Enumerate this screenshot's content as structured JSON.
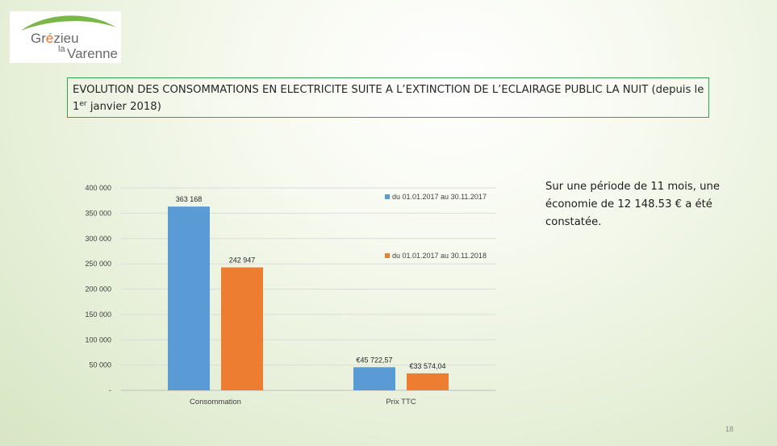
{
  "logo": {
    "name_part1": "Gr",
    "name_accent": "é",
    "name_part2": "zieu",
    "name_small": "la",
    "name_part3": "Varenne"
  },
  "slide": {
    "title_main": "EVOLUTION DES CONSOMMATIONS EN ELECTRICITE SUITE A L’EXTINCTION DE L’ECLAIRAGE PUBLIC LA NUIT (depuis le 1",
    "title_sup": "er",
    "title_end": " janvier 2018)",
    "note": "Sur une période de 11 mois, une économie de 12 148.53 € a été constatée.",
    "page_number": "18"
  },
  "colors": {
    "series1": "#5b9bd5",
    "series2": "#ed7d31",
    "title_border": "#36a34b",
    "logo_arc_green": "#7ab648"
  },
  "chart_data": {
    "type": "bar",
    "categories": [
      "Consommation",
      "Prix TTC"
    ],
    "series": [
      {
        "name": "du 01.01.2017 au 30.11.2017",
        "values": [
          363168,
          45722.57
        ],
        "labels": [
          "363 168",
          "€45 722,57"
        ],
        "color": "#5b9bd5"
      },
      {
        "name": "du 01.01.2017 au 30.11.2018",
        "values": [
          242947,
          33574.04
        ],
        "labels": [
          "242 947",
          "€33 574,04"
        ],
        "color": "#ed7d31"
      }
    ],
    "ylim": [
      0,
      400000
    ],
    "yticks": [
      0,
      50000,
      100000,
      150000,
      200000,
      250000,
      300000,
      350000,
      400000
    ],
    "ytick_labels": [
      "-",
      "50 000",
      "100 000",
      "150 000",
      "200 000",
      "250 000",
      "300 000",
      "350 000",
      "400 000"
    ],
    "grid": true,
    "legend_position": "right"
  }
}
